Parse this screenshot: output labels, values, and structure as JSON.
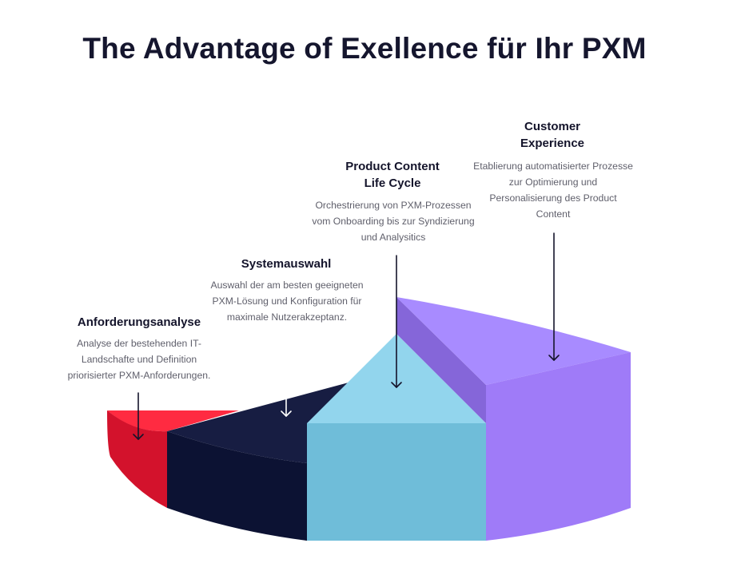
{
  "title": "The Advantage of Exellence für Ihr PXM",
  "stages": [
    {
      "id": "anforderungsanalyse",
      "title": "Anforderungsanalyse",
      "description": "Analyse der bestehenden IT-Landschafte und Definition priorisierter PXM-Anforderungen.",
      "color": "#f0263d"
    },
    {
      "id": "systemauswahl",
      "title": "Systemauswahl",
      "description": "Auswahl der am besten geeigneten PXM-Lösung und Konfiguration für maximale Nutzerakzeptanz.",
      "color": "#141a3d"
    },
    {
      "id": "product-content-life-cycle",
      "title": "Product Content Life Cycle",
      "description": "Orchestrierung von PXM-Prozessen vom Onboarding bis zur Syndizierung und Analysitics",
      "color": "#8fd4ec"
    },
    {
      "id": "customer-experience",
      "title": "Customer Experience",
      "description": "Etablierung automatisierter Prozesse zur Optimierung und Personalisierung des Product Content",
      "color": "#a98bfb"
    }
  ]
}
